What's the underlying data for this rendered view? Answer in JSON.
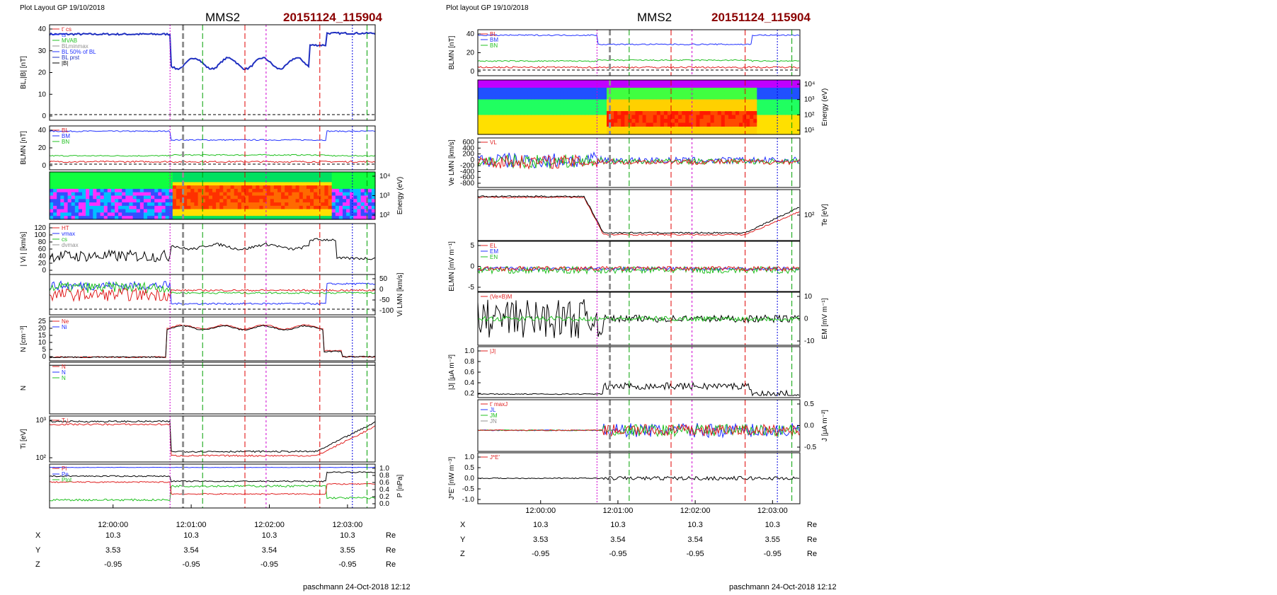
{
  "accent_red": "#8b0000",
  "pages": [
    {
      "header": {
        "plot_layout": "Plot Layout GP 19/10/2018",
        "spacecraft": "MMS2",
        "event_id": "20151124_115904"
      },
      "footer": "paschmann 24-Oct-2018 12:12",
      "x_ticks": [
        "12:00:00",
        "12:01:00",
        "12:02:00",
        "12:03:00"
      ],
      "ephemeris": [
        {
          "name": "X",
          "values": [
            "10.3",
            "10.3",
            "10.3",
            "10.3"
          ],
          "unit": "Re"
        },
        {
          "name": "Y",
          "values": [
            "3.53",
            "3.54",
            "3.54",
            "3.55"
          ],
          "unit": "Re"
        },
        {
          "name": "Z",
          "values": [
            "-0.95",
            "-0.95",
            "-0.95",
            "-0.95"
          ],
          "unit": "Re"
        }
      ],
      "panels": [
        {
          "id": "b_lmn_total",
          "type": "line",
          "ylabel": "BL,|B| [nT]",
          "side": "left",
          "ticks": [
            "40",
            "30",
            "20",
            "10",
            "0"
          ],
          "legend": [
            "t' cs",
            "ts",
            "MVAB",
            "BLminmax",
            "BL 50% of BL",
            "BL prst",
            "|B|"
          ]
        },
        {
          "id": "b_lmn",
          "type": "line",
          "ylabel": "BLMN [nT]",
          "side": "left",
          "ticks": [
            "40",
            "20",
            "0"
          ],
          "legend": [
            "BL",
            "BM",
            "BN"
          ]
        },
        {
          "id": "ion_spectrogram",
          "type": "heatmap",
          "ylabel": "Energy (eV)",
          "side": "right",
          "ticks": [
            "10⁴",
            "10³",
            "10²"
          ]
        },
        {
          "id": "vi_magnitude",
          "type": "line",
          "ylabel": "| Vi | [km/s]",
          "side": "left",
          "ticks": [
            "120",
            "100",
            "80",
            "60",
            "40",
            "20",
            "0"
          ],
          "legend": [
            "HT",
            "vmax",
            "cs",
            "dvmax"
          ]
        },
        {
          "id": "vi_lmn",
          "type": "line",
          "ylabel": "Vi LMN [km/s]",
          "side": "right",
          "ticks": [
            "50",
            "0",
            "-50",
            "-100"
          ]
        },
        {
          "id": "density",
          "type": "line",
          "ylabel": "N [cm⁻³]",
          "side": "left",
          "ticks": [
            "25",
            "20",
            "15",
            "10",
            "5",
            "0"
          ],
          "legend": [
            "Ne",
            "Ni"
          ]
        },
        {
          "id": "normals",
          "type": "line",
          "ylabel": "N",
          "side": "left",
          "ticks": [],
          "legend": [
            "N",
            "N",
            "N"
          ]
        },
        {
          "id": "ti",
          "type": "line",
          "ylabel": "Ti [eV]",
          "side": "left",
          "ticks": [
            "10³",
            "10²"
          ],
          "legend": [
            "T⊥"
          ]
        },
        {
          "id": "pressure",
          "type": "line",
          "ylabel": "P [nPa]",
          "side": "right",
          "ticks": [
            "1.0",
            "0.8",
            "0.6",
            "0.4",
            "0.2",
            "0.0"
          ],
          "legend": [
            "Pi",
            "Pe",
            "Ptot"
          ]
        }
      ]
    },
    {
      "header": {
        "plot_layout": "Plot layout GP 19/10/2018",
        "spacecraft": "MMS2",
        "event_id": "20151124_115904"
      },
      "footer": "paschmann 24-Oct-2018 12:12",
      "x_ticks": [
        "12:00:00",
        "12:01:00",
        "12:02:00",
        "12:03:00"
      ],
      "ephemeris": [
        {
          "name": "X",
          "values": [
            "10.3",
            "10.3",
            "10.3",
            "10.3"
          ],
          "unit": "Re"
        },
        {
          "name": "Y",
          "values": [
            "3.53",
            "3.54",
            "3.54",
            "3.55"
          ],
          "unit": "Re"
        },
        {
          "name": "Z",
          "values": [
            "-0.95",
            "-0.95",
            "-0.95",
            "-0.95"
          ],
          "unit": "Re"
        }
      ],
      "panels": [
        {
          "id": "b_lmn",
          "type": "line",
          "ylabel": "BLMN [nT]",
          "side": "left",
          "ticks": [
            "40",
            "20",
            "0"
          ],
          "legend": [
            "BL",
            "BM",
            "BN"
          ]
        },
        {
          "id": "e_spectrogram",
          "type": "heatmap",
          "ylabel": "Energy (eV)",
          "side": "right",
          "ticks": [
            "10⁴",
            "10³",
            "10²",
            "10¹"
          ]
        },
        {
          "id": "ve_lmn",
          "type": "line",
          "ylabel": "Ve LMN [km/s]",
          "side": "left",
          "ticks": [
            "600",
            "400",
            "200",
            "0",
            "-200",
            "-400",
            "-600",
            "-800"
          ],
          "legend": [
            "VL"
          ]
        },
        {
          "id": "te",
          "type": "line",
          "ylabel": "Te [eV]",
          "side": "right",
          "ticks": [
            "10²"
          ]
        },
        {
          "id": "e_lmn",
          "type": "line",
          "ylabel": "ELMN [mV m⁻¹]",
          "side": "left",
          "ticks": [
            "5",
            "0",
            "-5"
          ],
          "legend": [
            "EL",
            "EM",
            "EN"
          ]
        },
        {
          "id": "em",
          "type": "line",
          "ylabel": "EM [mV m⁻¹]",
          "side": "right",
          "ticks": [
            "10",
            "0",
            "-10"
          ],
          "legend": [
            "(Ve×B)M"
          ]
        },
        {
          "id": "j_mag",
          "type": "line",
          "ylabel": "|J| [μA m⁻²]",
          "side": "left",
          "ticks": [
            "1.0",
            "0.8",
            "0.6",
            "0.4",
            "0.2"
          ],
          "legend": [
            "|J|"
          ]
        },
        {
          "id": "j_lmn",
          "type": "line",
          "ylabel": "J [μA m⁻²]",
          "side": "right",
          "ticks": [
            "0.5",
            "0.0",
            "-0.5"
          ],
          "legend": [
            "t' maxJ",
            "JL",
            "JM",
            "JN"
          ]
        },
        {
          "id": "jdote",
          "type": "line",
          "ylabel": "J*E' [nW m⁻³]",
          "side": "left",
          "ticks": [
            "1.0",
            "0.5",
            "0.0",
            "-0.5",
            "-1.0"
          ],
          "legend": [
            "J*E'"
          ]
        }
      ]
    }
  ]
}
